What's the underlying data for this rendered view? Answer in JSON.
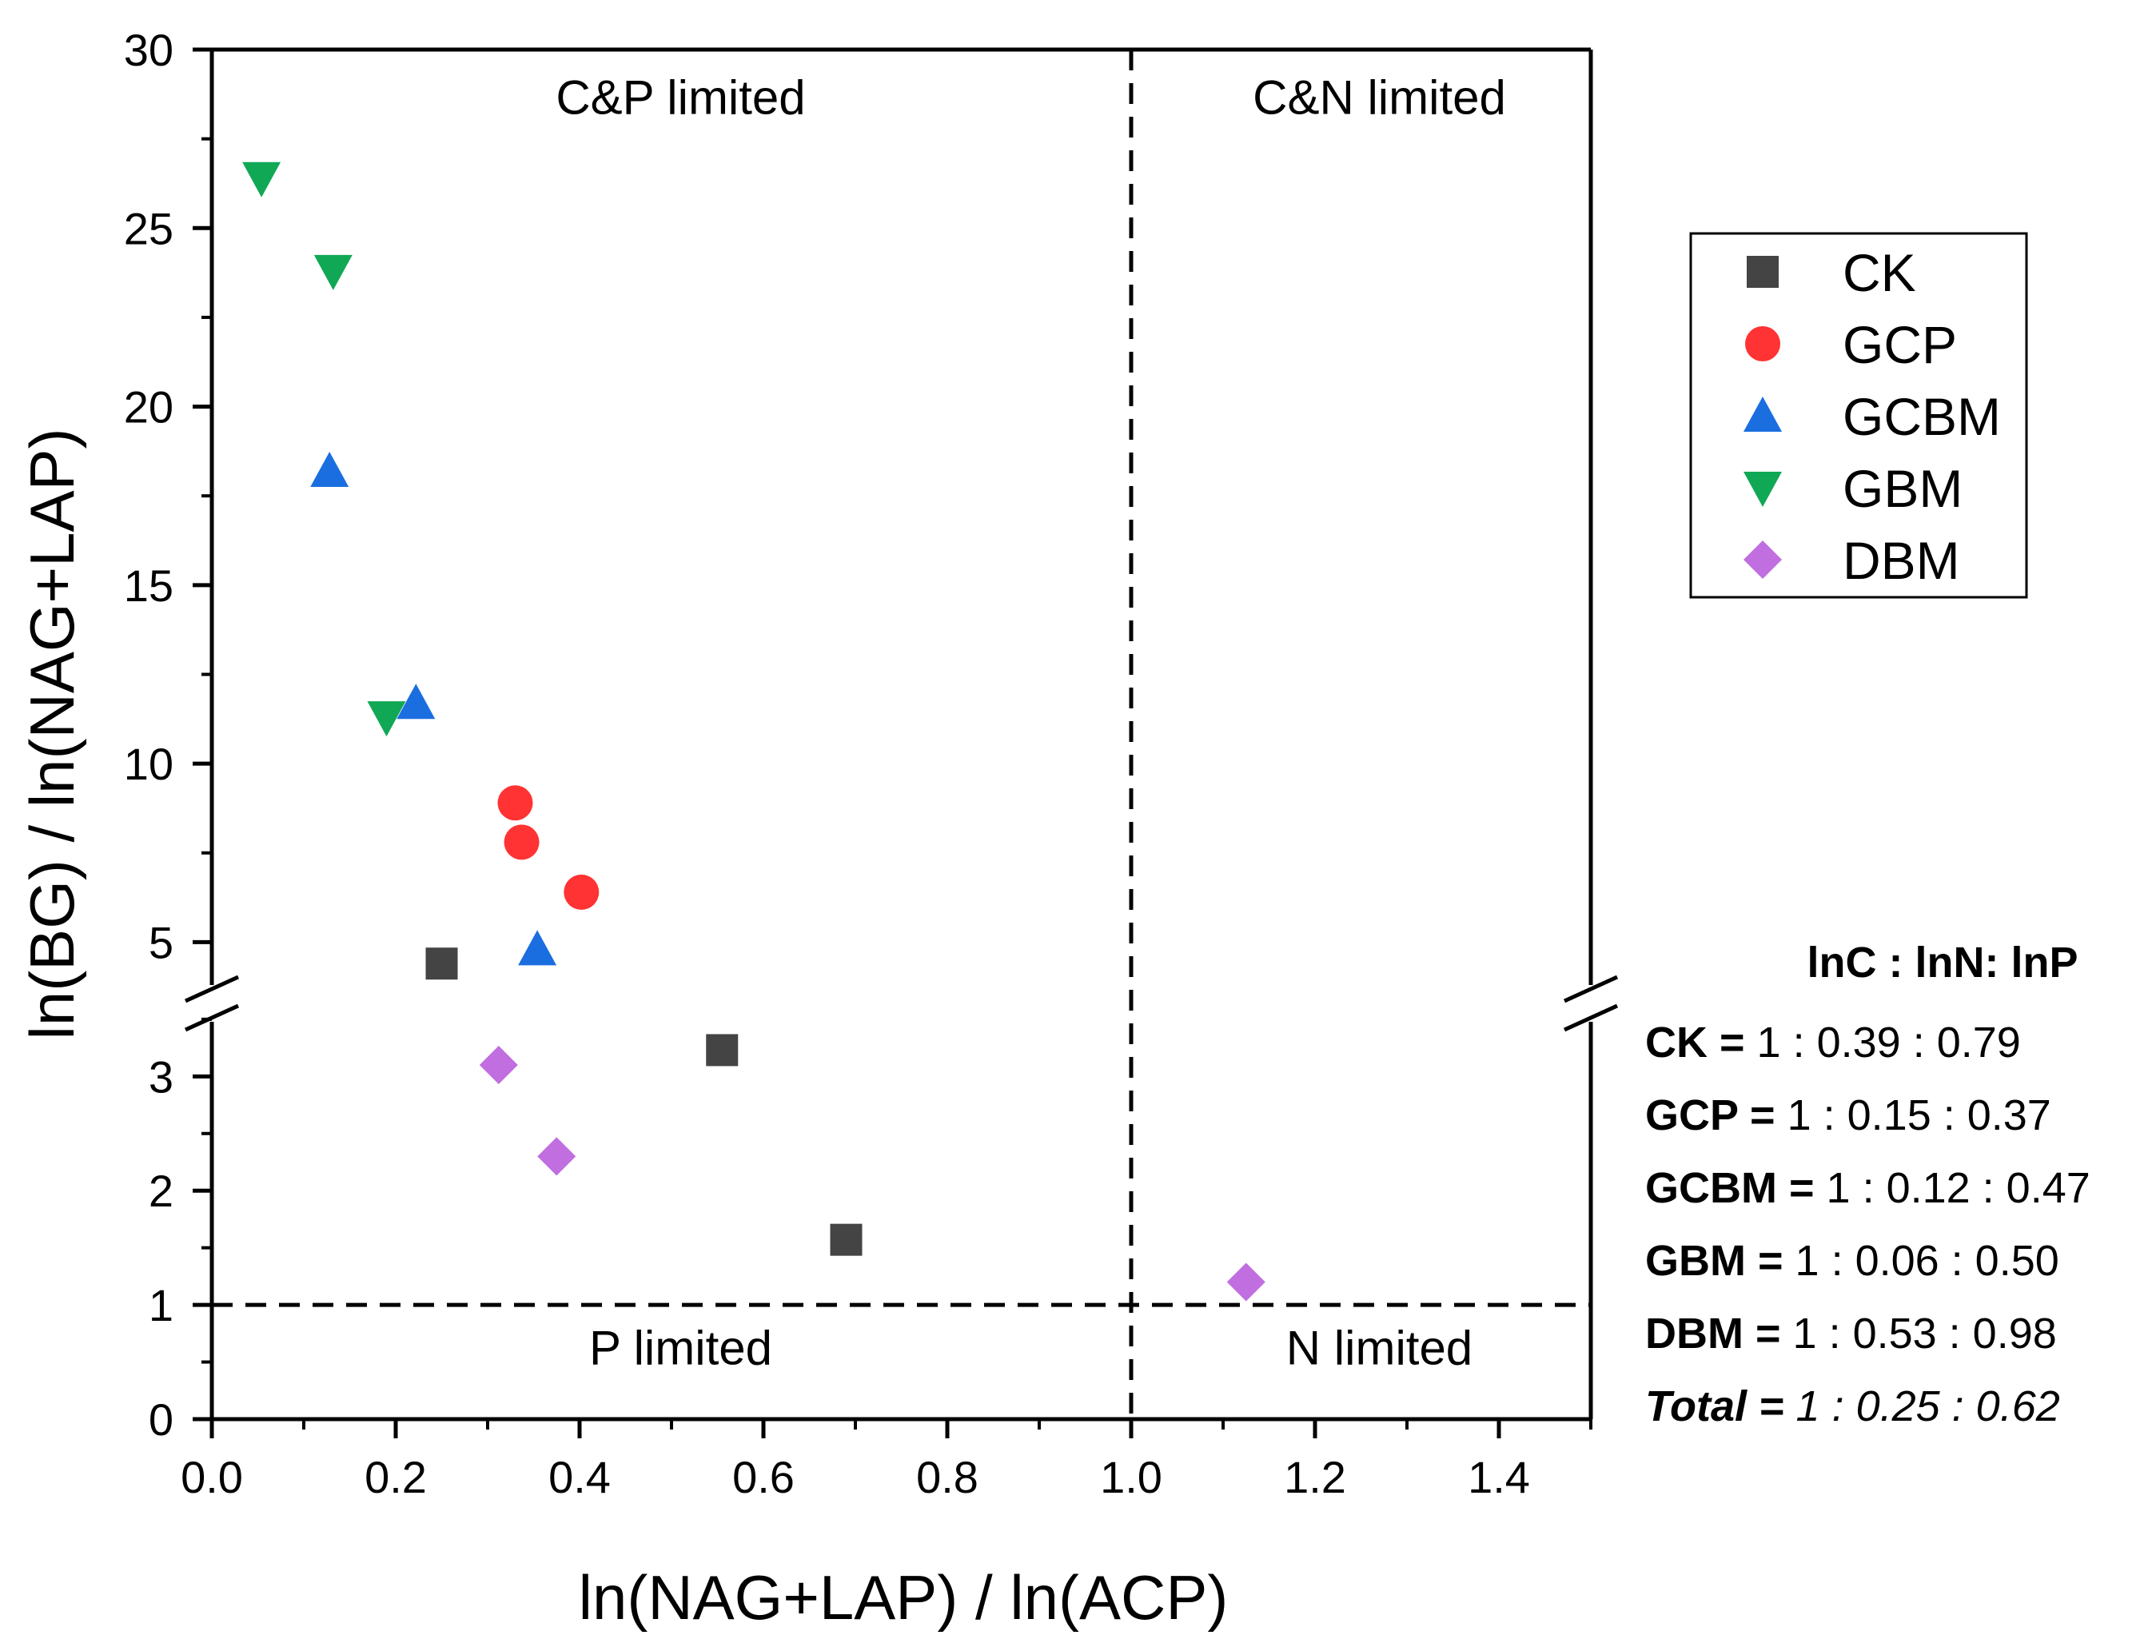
{
  "chart_data": {
    "type": "scatter",
    "xlabel": "ln(NAG+LAP) / ln(ACP)",
    "ylabel": "ln(BG) / ln(NAG+LAP)",
    "xlim": [
      0,
      1.5
    ],
    "ylim_lower": [
      0,
      3.8
    ],
    "ylim_upper": [
      3.8,
      30
    ],
    "y_axis_break": "between 3 and 5",
    "x_ticks": [
      "0.0",
      "0.2",
      "0.4",
      "0.6",
      "0.8",
      "1.0",
      "1.2",
      "1.4"
    ],
    "y_ticks_lower": [
      "0",
      "1",
      "2",
      "3"
    ],
    "y_ticks_upper": [
      "5",
      "10",
      "15",
      "20",
      "25",
      "30"
    ],
    "x_tick_values": [
      0,
      0.2,
      0.4,
      0.6,
      0.8,
      1.0,
      1.2,
      1.4
    ],
    "y_tick_values_lower": [
      0,
      1,
      2,
      3
    ],
    "y_tick_values_upper": [
      5,
      10,
      15,
      20,
      25,
      30
    ],
    "reference_lines": [
      {
        "orientation": "vertical",
        "value": 1.0,
        "style": "dashed"
      },
      {
        "orientation": "horizontal",
        "value": 1.0,
        "style": "dashed"
      }
    ],
    "region_labels": [
      {
        "text": "C&P limited",
        "x": 0.51,
        "y": 28.2
      },
      {
        "text": "C&N limited",
        "x": 1.27,
        "y": 28.2
      },
      {
        "text": "P limited",
        "x": 0.51,
        "y": 0.48
      },
      {
        "text": "N limited",
        "x": 1.27,
        "y": 0.48
      }
    ],
    "series": [
      {
        "name": "CK",
        "marker": "square",
        "color": "#444444",
        "points": [
          {
            "x": 0.25,
            "y": 4.4
          },
          {
            "x": 0.555,
            "y": 3.23
          },
          {
            "x": 0.69,
            "y": 1.57
          }
        ]
      },
      {
        "name": "GCP",
        "marker": "circle",
        "color": "#ff3333",
        "points": [
          {
            "x": 0.33,
            "y": 8.9
          },
          {
            "x": 0.337,
            "y": 7.8
          },
          {
            "x": 0.402,
            "y": 6.4
          }
        ]
      },
      {
        "name": "GCBM",
        "marker": "triangle-up",
        "color": "#1a6ee0",
        "points": [
          {
            "x": 0.128,
            "y": 18.2
          },
          {
            "x": 0.222,
            "y": 11.7
          },
          {
            "x": 0.354,
            "y": 4.8
          }
        ]
      },
      {
        "name": "GBM",
        "marker": "triangle-down",
        "color": "#10a855",
        "points": [
          {
            "x": 0.054,
            "y": 26.4
          },
          {
            "x": 0.132,
            "y": 23.8
          },
          {
            "x": 0.19,
            "y": 11.3
          }
        ]
      },
      {
        "name": "DBM",
        "marker": "diamond",
        "color": "#c06ee0",
        "points": [
          {
            "x": 0.312,
            "y": 3.1
          },
          {
            "x": 0.375,
            "y": 2.3
          },
          {
            "x": 1.125,
            "y": 1.2
          }
        ]
      }
    ],
    "legend_position": "right",
    "grid": false
  },
  "ratios": {
    "heading": "lnC : lnN: lnP",
    "rows": [
      {
        "label": "CK =",
        "value": "1 : 0.39 : 0.79"
      },
      {
        "label": "GCP =",
        "value": "1 : 0.15 : 0.37"
      },
      {
        "label": "GCBM =",
        "value": "1 : 0.12 : 0.47"
      },
      {
        "label": "GBM =",
        "value": "1 : 0.06 : 0.50"
      },
      {
        "label": "DBM =",
        "value": "1 : 0.53 : 0.98"
      },
      {
        "label": "Total =",
        "value": "1 : 0.25 : 0.62"
      }
    ]
  }
}
